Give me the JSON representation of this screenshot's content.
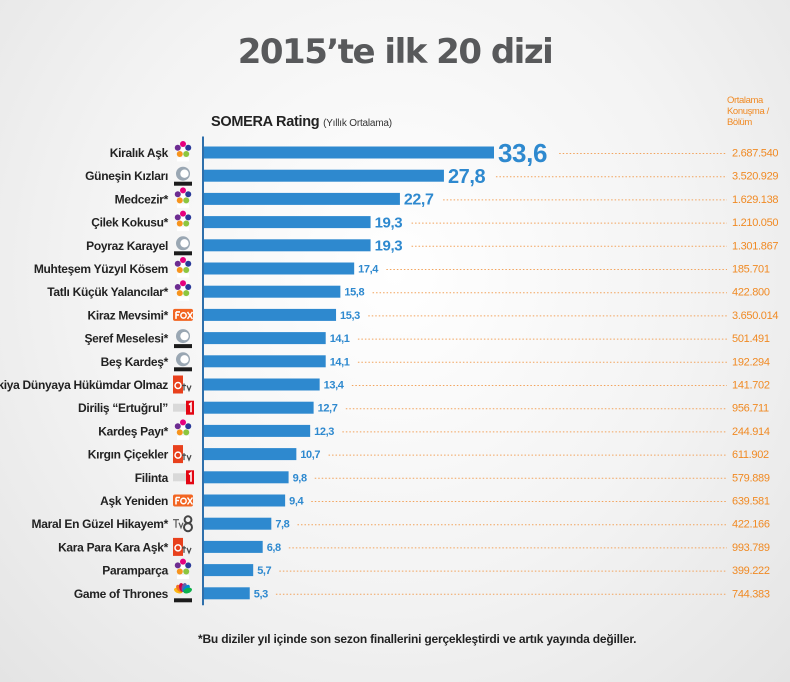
{
  "title": "2015’te ilk 20 dizi",
  "rating_label": "SOMERA Rating",
  "rating_sublabel": "(Yıllık Ortalama)",
  "speech_header": [
    "Ortalama",
    "Konuşma /",
    "Bölüm"
  ],
  "footnote": "*Bu diziler yıl içinde son sezon finallerini gerçekleştirdi ve artık yayında  değiller.",
  "colors": {
    "bar": "#2e89cf",
    "value_label": "#2e89cf",
    "speech_text": "#f08a24",
    "axis": "#2e6fab",
    "title": "#58595b"
  },
  "channel_logos": {
    "star": "star-tv-logo",
    "kanal-d": "kanal-d-logo",
    "fox": "fox-logo",
    "atv": "atv-logo",
    "trt1": "trt1-logo",
    "tv8": "tv8-logo",
    "cnbc-e": "cnbc-e-logo"
  },
  "chart_data": {
    "type": "bar",
    "orientation": "horizontal",
    "title": "2015’te ilk 20 dizi",
    "xlabel": "SOMERA Rating (Yıllık Ortalama)",
    "categories": [
      "Kiralık Aşk",
      "Güneşin Kızları",
      "Medcezir*",
      "Çilek Kokusu*",
      "Poyraz Karayel",
      "Muhteşem Yüzyıl Kösem",
      "Tatlı Küçük Yalancılar*",
      "Kiraz Mevsimi*",
      "Şeref Meselesi*",
      "Beş Kardeş*",
      "Eşkiya Dünyaya Hükümdar Olmaz",
      "Diriliş “Ertuğrul”",
      "Kardeş Payı*",
      "Kırgın Çiçekler",
      "Filinta",
      "Aşk Yeniden",
      "Maral En Güzel Hikayem*",
      "Kara Para Kara Aşk*",
      "Paramparça",
      "Game of Thrones"
    ],
    "values": [
      33.6,
      27.8,
      22.7,
      19.3,
      19.3,
      17.4,
      15.8,
      15.3,
      14.1,
      14.1,
      13.4,
      12.7,
      12.3,
      10.7,
      9.8,
      9.4,
      7.8,
      6.8,
      5.7,
      5.3
    ],
    "value_labels": [
      "33,6",
      "27,8",
      "22,7",
      "19,3",
      "19,3",
      "17,4",
      "15,8",
      "15,3",
      "14,1",
      "14,1",
      "13,4",
      "12,7",
      "12,3",
      "10,7",
      "9,8",
      "9,4",
      "7,8",
      "6,8",
      "5,7",
      "5,3"
    ],
    "channels": [
      "star",
      "kanal-d",
      "star",
      "star",
      "kanal-d",
      "star",
      "star",
      "fox",
      "kanal-d",
      "kanal-d",
      "atv",
      "trt1",
      "star",
      "atv",
      "trt1",
      "fox",
      "tv8",
      "atv",
      "star",
      "cnbc-e"
    ],
    "secondary_series": {
      "name": "Ortalama Konuşma / Bölüm",
      "values": [
        2687540,
        3520929,
        1629138,
        1210050,
        1301867,
        185701,
        422800,
        3650014,
        501491,
        192294,
        141702,
        956711,
        244914,
        611902,
        579889,
        639581,
        422166,
        993789,
        399222,
        744383
      ],
      "labels": [
        "2.687.540",
        "3.520.929",
        "1.629.138",
        "1.210.050",
        "1.301.867",
        "185.701",
        "422.800",
        "3.650.014",
        "501.491",
        "192.294",
        "141.702",
        "956.711",
        "244.914",
        "611.902",
        "579.889",
        "639.581",
        "422.166",
        "993.789",
        "399.222",
        "744.383"
      ]
    },
    "xlim": [
      0,
      33.6
    ],
    "grid": false,
    "legend": "none"
  }
}
